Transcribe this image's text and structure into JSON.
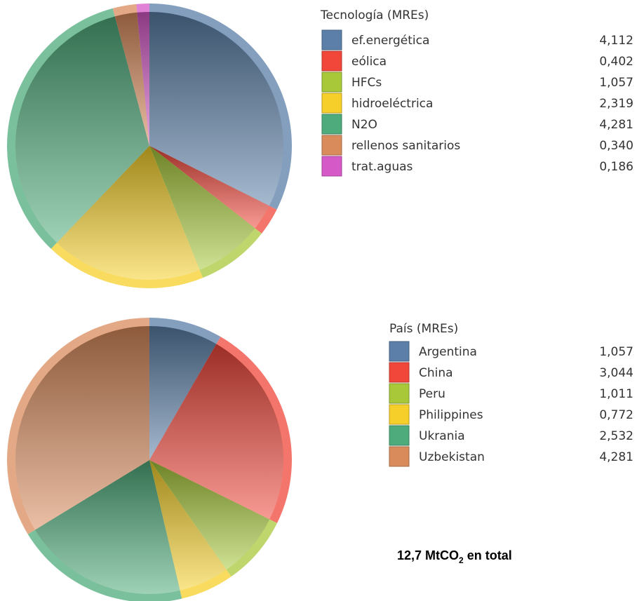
{
  "chart_data": [
    {
      "type": "pie",
      "legend_title": "Tecnología (MREs)",
      "categories": [
        "ef.energética",
        "eólica",
        "HFCs",
        "hidroeléctrica",
        "N2O",
        "rellenos sanitarios",
        "trat.aguas"
      ],
      "values": [
        4.112,
        0.402,
        1.057,
        2.319,
        4.281,
        0.34,
        0.186
      ],
      "value_labels": [
        "4,112",
        "0,402",
        "1,057",
        "2,319",
        "4,281",
        "0,340",
        "0,186"
      ],
      "colors": [
        "#5b7fa8",
        "#f0473a",
        "#a8c83a",
        "#f6cf2a",
        "#4eab7b",
        "#d98b5c",
        "#d659c8"
      ],
      "legend_placement": "right"
    },
    {
      "type": "pie",
      "legend_title": "País (MREs)",
      "categories": [
        "Argentina",
        "China",
        "Peru",
        "Philippines",
        "Ukrania",
        "Uzbekistan"
      ],
      "values": [
        1.057,
        3.044,
        1.011,
        0.772,
        2.532,
        4.281
      ],
      "value_labels": [
        "1,057",
        "3,044",
        "1,011",
        "0,772",
        "2,532",
        "4,281"
      ],
      "colors": [
        "#5b7fa8",
        "#f0473a",
        "#a8c83a",
        "#f6cf2a",
        "#4eab7b",
        "#d98b5c"
      ],
      "legend_placement": "right"
    }
  ],
  "total": {
    "prefix": "12,7 MtCO",
    "subscript": "2",
    "suffix": " en total"
  }
}
